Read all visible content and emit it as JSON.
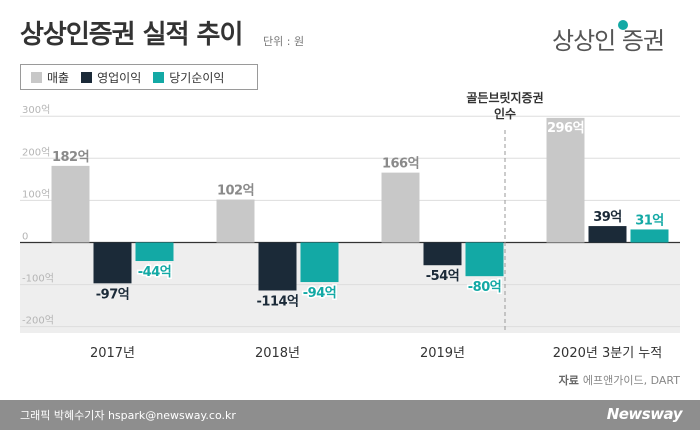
{
  "header": {
    "title": "상상인증권 실적 추이",
    "unit": "단위 : 원",
    "logo_text": "상상인 증권"
  },
  "legend": [
    {
      "name": "매출",
      "color": "#c8c8c8"
    },
    {
      "name": "영업이익",
      "color": "#1b2a38"
    },
    {
      "name": "당기순이익",
      "color": "#13a9a5"
    }
  ],
  "chart_data": {
    "type": "bar",
    "categories": [
      "2017년",
      "2018년",
      "2019년",
      "2020년 3분기 누적"
    ],
    "series": [
      {
        "name": "매출",
        "values": [
          182,
          102,
          166,
          296
        ],
        "labels": [
          "182억",
          "102억",
          "166억",
          "296억"
        ],
        "color": "#c8c8c8"
      },
      {
        "name": "영업이익",
        "values": [
          -97,
          -114,
          -54,
          39
        ],
        "labels": [
          "-97억",
          "-114억",
          "-54억",
          "39억"
        ],
        "color": "#1b2a38"
      },
      {
        "name": "당기순이익",
        "values": [
          -44,
          -94,
          -80,
          31
        ],
        "labels": [
          "-44억",
          "-94억",
          "-80억",
          "31억"
        ],
        "color": "#13a9a5"
      }
    ],
    "yticks": [
      "300억",
      "200억",
      "100억",
      "0",
      "-100억",
      "-200억"
    ],
    "ytick_values": [
      300,
      200,
      100,
      0,
      -100,
      -200
    ],
    "ylim": [
      -215,
      310
    ],
    "annotation": {
      "text_line1": "골든브릿지증권",
      "text_line2": "인수",
      "after_category_index": 2
    },
    "legend_position": "top-left"
  },
  "source": {
    "label": "자료",
    "text": "에프앤가이드, DART"
  },
  "footer": {
    "credit": "그래픽 박혜수기자 hspark@newsway.co.kr",
    "brand": "Newsway"
  }
}
